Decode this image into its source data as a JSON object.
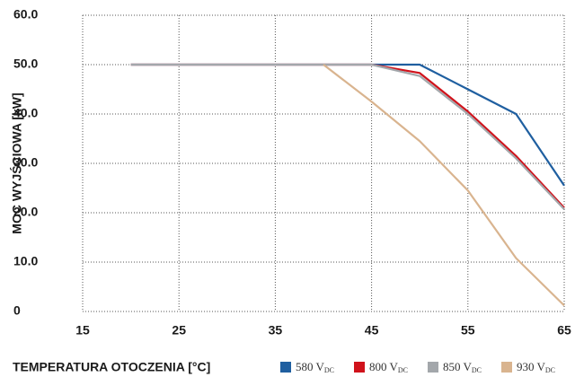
{
  "chart_data": {
    "type": "line",
    "xlabel": "TEMPERATURA OTOCZENIA [°C]",
    "ylabel": "MOC WYJŚCIOWA [kW]",
    "x": [
      20,
      40,
      45,
      50,
      55,
      60,
      65
    ],
    "series": [
      {
        "name": "580 VDC",
        "color": "#1f5fa0",
        "values": [
          50,
          50,
          50,
          50,
          45,
          40,
          25.5
        ]
      },
      {
        "name": "800 VDC",
        "color": "#d0121b",
        "values": [
          50,
          50,
          50,
          48.3,
          40.5,
          31.5,
          21
        ]
      },
      {
        "name": "850 VDC",
        "color": "#a3a7ab",
        "values": [
          50,
          50,
          50,
          47.7,
          40,
          31,
          20.7
        ]
      },
      {
        "name": "930 VDC",
        "color": "#d9b48f",
        "values": [
          null,
          50,
          42.5,
          34.5,
          24.5,
          10.8,
          1.2
        ]
      }
    ],
    "xlim": [
      15,
      65
    ],
    "xticks": [
      15,
      25,
      35,
      45,
      55,
      65
    ],
    "ylim": [
      0,
      60
    ],
    "yticks": [
      0,
      {
        "value": 10,
        "label": "10.0"
      },
      {
        "value": 20,
        "label": "20.0"
      },
      {
        "value": 30,
        "label": "30.0"
      },
      {
        "value": 40,
        "label": "40.0"
      },
      {
        "value": 50,
        "label": "50.0"
      },
      {
        "value": 60,
        "label": "60.0"
      }
    ],
    "grid": true
  }
}
